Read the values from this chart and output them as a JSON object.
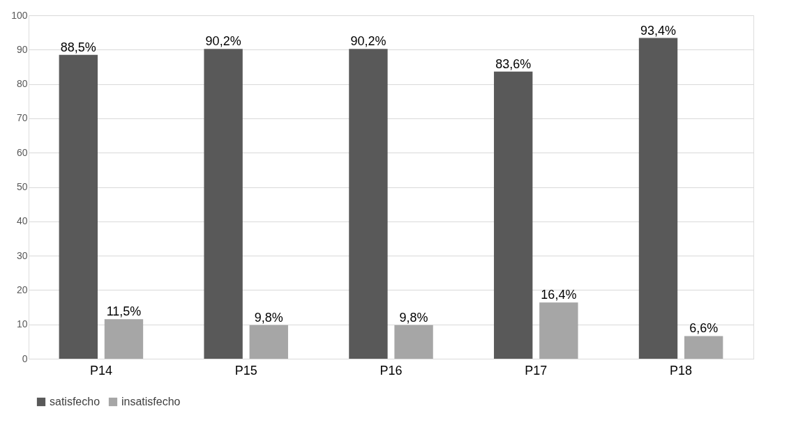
{
  "chart_data": {
    "type": "bar",
    "categories": [
      "P14",
      "P15",
      "P16",
      "P17",
      "P18"
    ],
    "series": [
      {
        "name": "satisfecho",
        "color": "#595959",
        "values": [
          88.5,
          90.2,
          90.2,
          83.6,
          93.4
        ],
        "value_labels": [
          "88,5%",
          "90,2%",
          "90,2%",
          "83,6%",
          "93,4%"
        ]
      },
      {
        "name": "insatisfecho",
        "color": "#a6a6a6",
        "values": [
          11.5,
          9.8,
          9.8,
          16.4,
          6.6
        ],
        "value_labels": [
          "11,5%",
          "9,8%",
          "9,8%",
          "16,4%",
          "6,6%"
        ]
      }
    ],
    "ylim": [
      0,
      100
    ],
    "yticks": [
      0,
      10,
      20,
      30,
      40,
      50,
      60,
      70,
      80,
      90,
      100
    ],
    "grid": "y",
    "legend": "bottom"
  }
}
